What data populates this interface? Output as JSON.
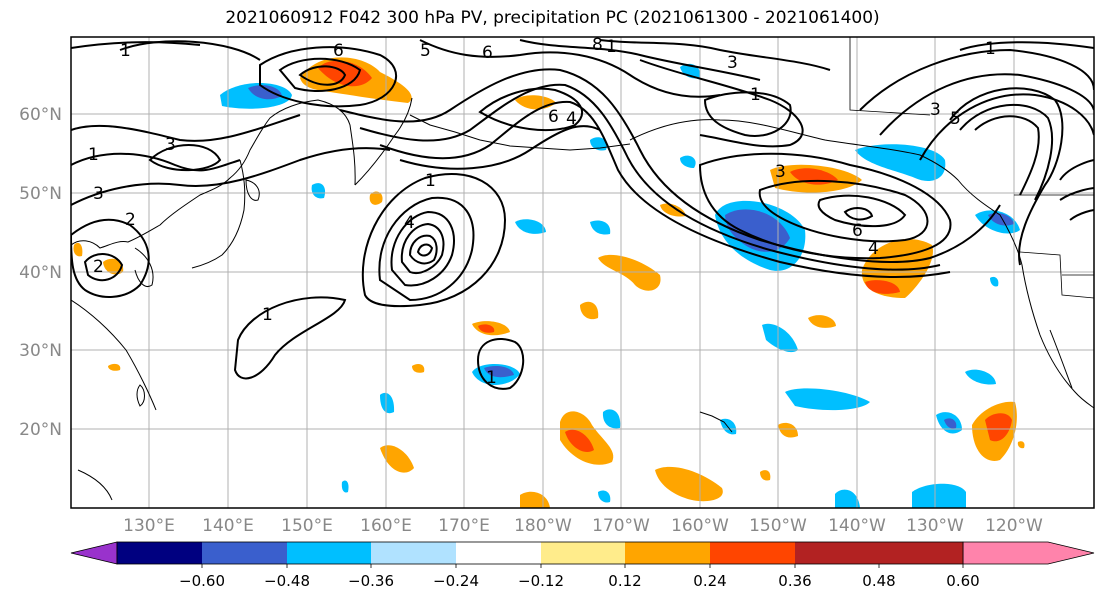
{
  "title": "2021060912 F042 300 hPa PV, precipitation PC (2021061300 - 2021061400)",
  "lat_labels": [
    "60°N",
    "50°N",
    "40°N",
    "30°N",
    "20°N"
  ],
  "lon_labels": [
    "130°E",
    "140°E",
    "150°E",
    "160°E",
    "170°E",
    "180°W",
    "170°W",
    "160°W",
    "150°W",
    "140°W",
    "130°W",
    "120°W"
  ],
  "colorbar": {
    "colors": [
      "#9932cc",
      "#000080",
      "#3a5fcd",
      "#00bfff",
      "#b0e2ff",
      "#ffffff",
      "#ffec8b",
      "#ffa500",
      "#ff4500",
      "#b22222",
      "#ff83ab"
    ],
    "tick_labels": [
      "−0.60",
      "−0.48",
      "−0.36",
      "−0.24",
      "−0.12",
      "0.12",
      "0.24",
      "0.36",
      "0.48",
      "0.60"
    ]
  },
  "contour_labels": [
    "1",
    "1",
    "3",
    "3",
    "2",
    "6",
    "5",
    "6",
    "8",
    "1",
    "6",
    "4",
    "3",
    "1",
    "1",
    "3",
    "5",
    "6",
    "4",
    "3",
    "1",
    "4",
    "1",
    "2",
    "1"
  ]
}
